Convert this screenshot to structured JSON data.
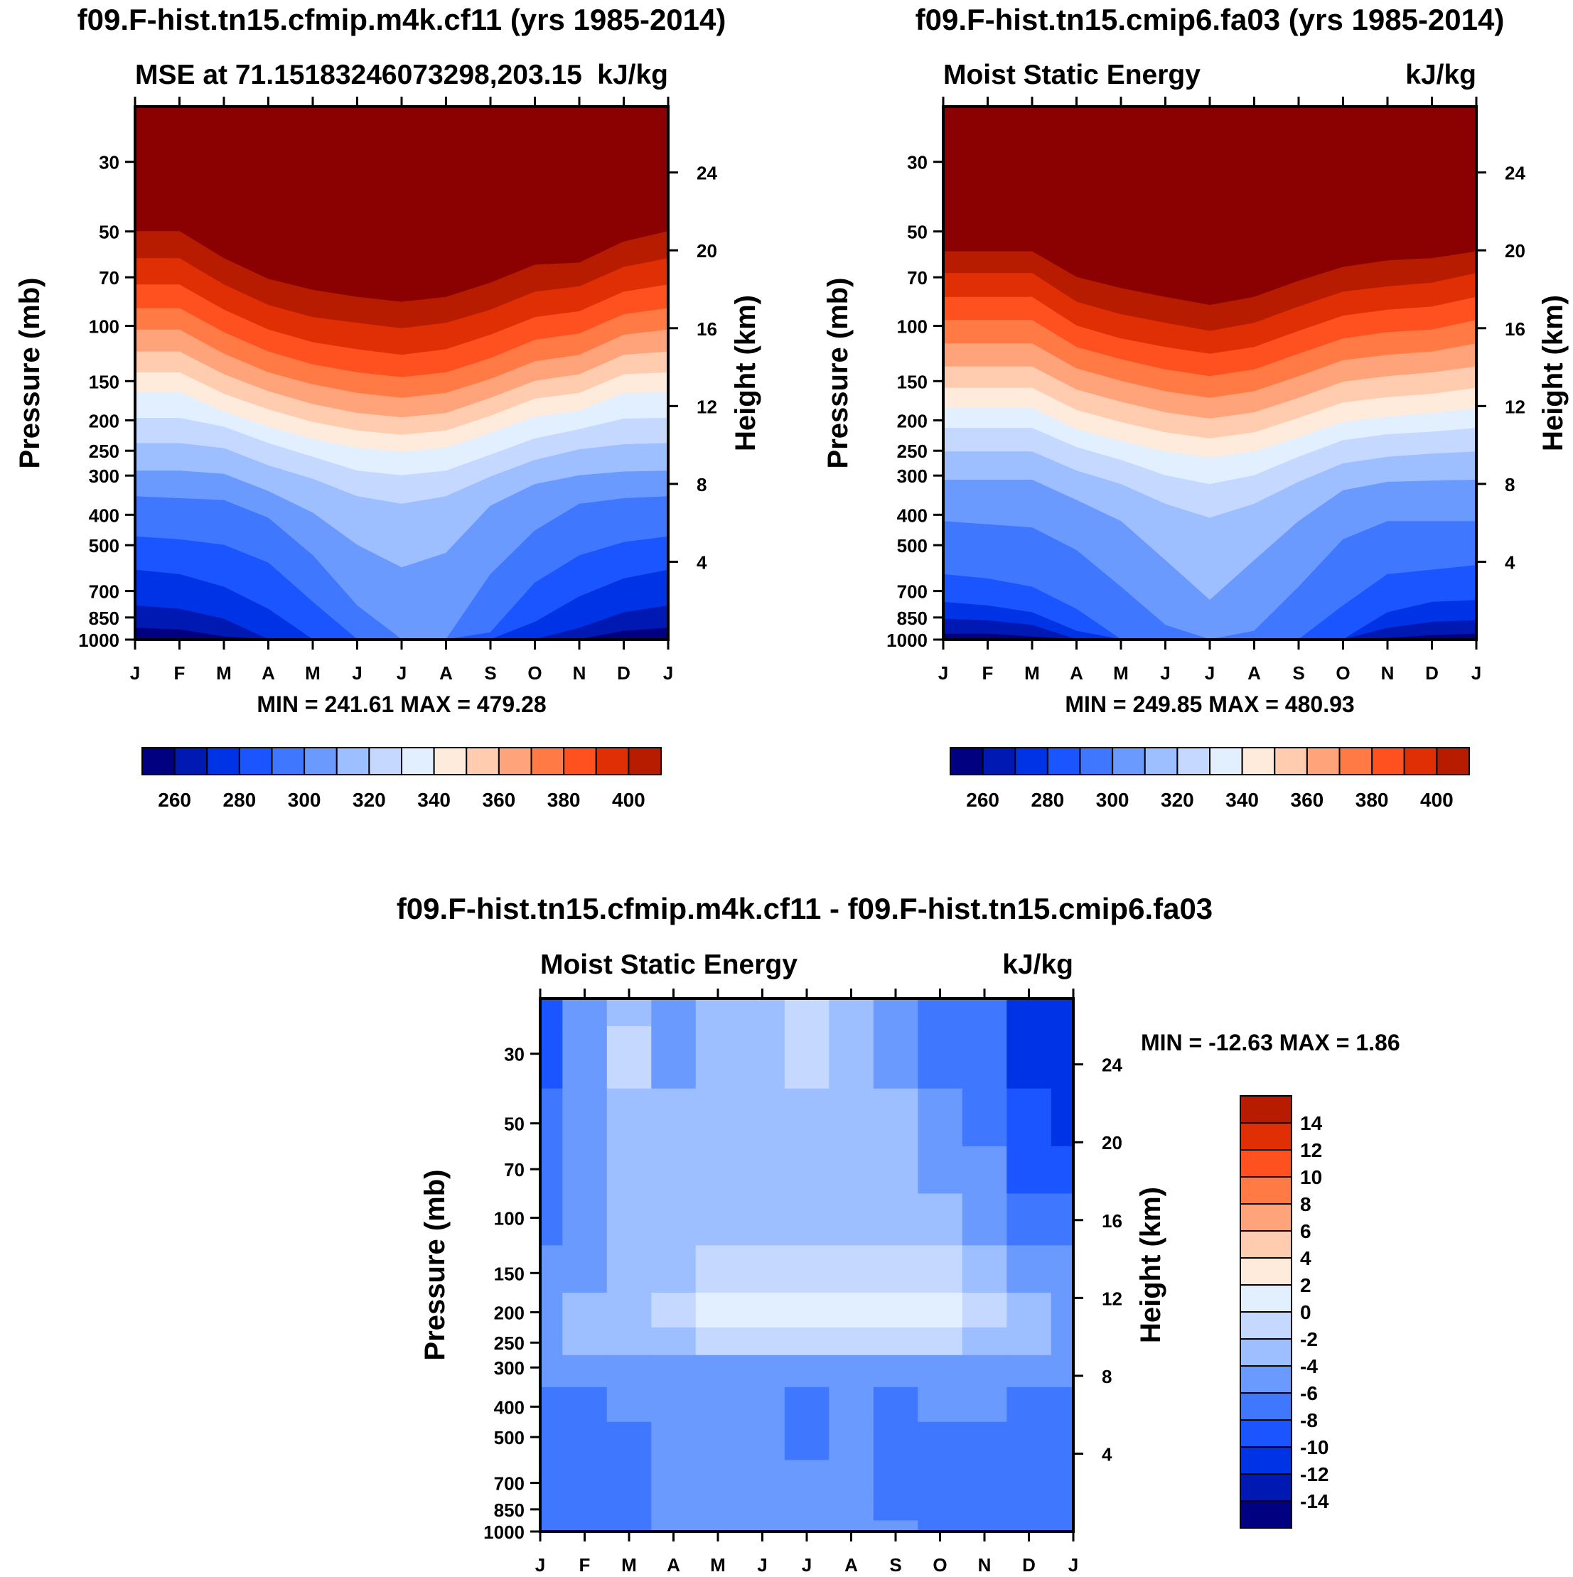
{
  "colors": {
    "mse_levels": [
      "#000080",
      "#0019B3",
      "#0033E6",
      "#1A55FF",
      "#3F77FF",
      "#6B9AFF",
      "#9DBEFF",
      "#C5D8FF",
      "#E2EFFF",
      "#FFEBDB",
      "#FFCCB0",
      "#FFA37A",
      "#FF7A45",
      "#FF5020",
      "#E02F05",
      "#B81C00",
      "#8B0000"
    ],
    "diff_levels": [
      "#000080",
      "#0019B3",
      "#0033E6",
      "#1A55FF",
      "#3F77FF",
      "#6B9AFF",
      "#9DBEFF",
      "#C5D8FF",
      "#E2EFFF",
      "#FFEBDB",
      "#FFCCB0",
      "#FFA37A",
      "#FF7A45",
      "#FF5020",
      "#E02F05",
      "#B81C00",
      "#8B0000"
    ]
  },
  "chart_data": [
    {
      "type": "heatmap",
      "title": "f09.F-hist.tn15.cfmip.m4k.cf11 (yrs 1985-2014)",
      "left_string": "MSE at 71.15183246073298,203.15",
      "right_string": "kJ/kg",
      "ylabel": "Pressure (mb)",
      "y2label": "Height (km)",
      "x_tick_labels": [
        "J",
        "F",
        "M",
        "A",
        "M",
        "J",
        "J",
        "A",
        "S",
        "O",
        "N",
        "D",
        "J"
      ],
      "y_ticks": [
        30,
        50,
        70,
        100,
        150,
        200,
        250,
        300,
        400,
        500,
        700,
        850,
        1000
      ],
      "y2_ticks": [
        24,
        20,
        16,
        12,
        8,
        4
      ],
      "ylim": [
        20,
        1000
      ],
      "min_max_text": "MIN = 241.61 MAX = 479.28",
      "colorbar": {
        "orientation": "horizontal",
        "labels": [
          "260",
          "280",
          "300",
          "320",
          "340",
          "360",
          "380",
          "400"
        ],
        "boundaries": [
          250,
          260,
          270,
          280,
          290,
          300,
          310,
          320,
          330,
          340,
          350,
          360,
          370,
          380,
          390,
          400
        ]
      },
      "boundaries_mb": {
        "400": [
          50,
          50,
          61,
          71,
          77,
          81,
          84,
          81,
          73,
          64,
          63,
          54,
          50
        ],
        "390": [
          61,
          61,
          74,
          86,
          94,
          98,
          102,
          98,
          89,
          78,
          75,
          65,
          61
        ],
        "380": [
          74,
          74,
          89,
          103,
          113,
          119,
          124,
          119,
          107,
          94,
          90,
          78,
          74
        ],
        "370": [
          88,
          88,
          105,
          121,
          133,
          141,
          146,
          141,
          127,
          111,
          106,
          92,
          88
        ],
        "360": [
          103,
          103,
          123,
          141,
          154,
          164,
          170,
          164,
          148,
          130,
          124,
          107,
          103
        ],
        "350": [
          121,
          121,
          143,
          162,
          178,
          190,
          196,
          190,
          170,
          150,
          143,
          124,
          121
        ],
        "340": [
          141,
          141,
          165,
          185,
          203,
          216,
          223,
          216,
          194,
          171,
          164,
          143,
          141
        ],
        "330": [
          163,
          163,
          188,
          210,
          230,
          245,
          252,
          245,
          220,
          195,
          187,
          164,
          163
        ],
        "320": [
          197,
          197,
          210,
          237,
          262,
          290,
          300,
          290,
          258,
          229,
          214,
          198,
          197
        ],
        "310": [
          237,
          237,
          246,
          279,
          308,
          350,
          370,
          350,
          303,
          268,
          248,
          239,
          237
        ],
        "300": [
          290,
          290,
          297,
          337,
          395,
          500,
          590,
          530,
          375,
          320,
          300,
          292,
          290
        ],
        "290": [
          350,
          355,
          360,
          410,
          540,
          780,
          1000,
          1000,
          620,
          450,
          370,
          355,
          350
        ],
        "280": [
          470,
          480,
          500,
          570,
          760,
          1000,
          1000,
          1000,
          950,
          660,
          540,
          490,
          470
        ],
        "270": [
          600,
          620,
          680,
          800,
          1000,
          1000,
          1000,
          1000,
          1000,
          880,
          730,
          640,
          600
        ],
        "260": [
          780,
          800,
          860,
          1000,
          1000,
          1000,
          1000,
          1000,
          1000,
          1000,
          920,
          820,
          780
        ],
        "250": [
          920,
          930,
          980,
          1000,
          1000,
          1000,
          1000,
          1000,
          1000,
          1000,
          1000,
          940,
          920
        ]
      }
    },
    {
      "type": "heatmap",
      "title": "f09.F-hist.tn15.cmip6.fa03 (yrs 1985-2014)",
      "left_string": "Moist Static Energy",
      "right_string": "kJ/kg",
      "ylabel": "Pressure (mb)",
      "y2label": "Height (km)",
      "x_tick_labels": [
        "J",
        "F",
        "M",
        "A",
        "M",
        "J",
        "J",
        "A",
        "S",
        "O",
        "N",
        "D",
        "J"
      ],
      "y_ticks": [
        30,
        50,
        70,
        100,
        150,
        200,
        250,
        300,
        400,
        500,
        700,
        850,
        1000
      ],
      "y2_ticks": [
        24,
        20,
        16,
        12,
        8,
        4
      ],
      "ylim": [
        20,
        1000
      ],
      "min_max_text": "MIN = 249.85 MAX = 480.93",
      "colorbar": {
        "orientation": "horizontal",
        "labels": [
          "260",
          "280",
          "300",
          "320",
          "340",
          "360",
          "380",
          "400"
        ],
        "boundaries": [
          250,
          260,
          270,
          280,
          290,
          300,
          310,
          320,
          330,
          340,
          350,
          360,
          370,
          380,
          390,
          400
        ]
      },
      "boundaries_mb": {
        "400": [
          58,
          58,
          58,
          70,
          76,
          81,
          86,
          81,
          72,
          65,
          62,
          61,
          58
        ],
        "390": [
          68,
          68,
          68,
          84,
          92,
          98,
          104,
          98,
          87,
          78,
          75,
          73,
          68
        ],
        "380": [
          81,
          81,
          81,
          100,
          110,
          117,
          123,
          117,
          104,
          93,
          89,
          87,
          81
        ],
        "370": [
          96,
          96,
          96,
          117,
          128,
          138,
          145,
          138,
          123,
          110,
          105,
          103,
          96
        ],
        "360": [
          114,
          114,
          114,
          137,
          150,
          162,
          170,
          162,
          145,
          129,
          124,
          121,
          114
        ],
        "350": [
          135,
          135,
          135,
          160,
          175,
          189,
          198,
          189,
          170,
          151,
          145,
          141,
          135
        ],
        "340": [
          158,
          158,
          158,
          186,
          203,
          219,
          229,
          219,
          197,
          176,
          169,
          165,
          158
        ],
        "330": [
          183,
          183,
          183,
          214,
          233,
          252,
          263,
          252,
          227,
          203,
          195,
          190,
          183
        ],
        "320": [
          212,
          212,
          212,
          244,
          268,
          300,
          320,
          300,
          262,
          232,
          222,
          218,
          212
        ],
        "310": [
          252,
          252,
          252,
          290,
          320,
          370,
          410,
          370,
          315,
          275,
          262,
          256,
          252
        ],
        "300": [
          310,
          310,
          310,
          360,
          420,
          560,
          750,
          560,
          420,
          335,
          315,
          312,
          310
        ],
        "290": [
          420,
          430,
          440,
          520,
          680,
          900,
          1000,
          940,
          680,
          480,
          420,
          420,
          420
        ],
        "280": [
          620,
          640,
          680,
          800,
          1000,
          1000,
          1000,
          1000,
          1000,
          780,
          620,
          600,
          580
        ],
        "270": [
          760,
          780,
          820,
          940,
          1000,
          1000,
          1000,
          1000,
          1000,
          1000,
          820,
          760,
          750
        ],
        "260": [
          860,
          870,
          900,
          1000,
          1000,
          1000,
          1000,
          1000,
          1000,
          1000,
          920,
          880,
          870
        ],
        "250": [
          960,
          960,
          980,
          1000,
          1000,
          1000,
          1000,
          1000,
          1000,
          1000,
          990,
          970,
          960
        ]
      }
    },
    {
      "type": "heatmap",
      "title": "f09.F-hist.tn15.cfmip.m4k.cf11 - f09.F-hist.tn15.cmip6.fa03",
      "left_string": "Moist Static Energy",
      "right_string": "kJ/kg",
      "ylabel": "Pressure (mb)",
      "y2label": "Height (km)",
      "x_tick_labels": [
        "J",
        "F",
        "M",
        "A",
        "M",
        "J",
        "J",
        "A",
        "S",
        "O",
        "N",
        "D",
        "J"
      ],
      "y_ticks": [
        30,
        50,
        70,
        100,
        150,
        200,
        250,
        300,
        400,
        500,
        700,
        850,
        1000
      ],
      "y2_ticks": [
        24,
        20,
        16,
        12,
        8,
        4
      ],
      "ylim": [
        20,
        1000
      ],
      "min_max_text": "MIN = -12.63 MAX =   1.86",
      "colorbar": {
        "orientation": "vertical",
        "labels": [
          "14",
          "12",
          "10",
          "8",
          "6",
          "4",
          "2",
          "0",
          "-2",
          "-4",
          "-6",
          "-8",
          "-10",
          "-12",
          "-14"
        ],
        "boundaries": [
          -15,
          -14,
          -12,
          -10,
          -8,
          -6,
          -4,
          -2,
          0,
          2,
          4,
          6,
          8,
          10,
          12,
          14,
          15
        ]
      },
      "matrix": {
        "months": [
          "J",
          "F",
          "M",
          "A",
          "M",
          "J",
          "J",
          "A",
          "S",
          "O",
          "N",
          "D",
          "J"
        ],
        "pressures_mb": [
          20,
          30,
          50,
          70,
          100,
          150,
          200,
          250,
          300,
          400,
          500,
          700,
          850,
          1000
        ],
        "values": [
          [
            -9,
            -6,
            -3,
            -5,
            -4,
            -3,
            -1.5,
            -3,
            -5,
            -7,
            -8,
            -11,
            -12
          ],
          [
            -9,
            -6,
            -2,
            -5,
            -4,
            -3,
            -1.5,
            -3,
            -5,
            -7,
            -8,
            -11,
            -12
          ],
          [
            -8,
            -5,
            -3,
            -4,
            -4,
            -3,
            -3,
            -3,
            -4,
            -6,
            -7,
            -10,
            -11
          ],
          [
            -8,
            -5,
            -3,
            -3,
            -3,
            -3,
            -3,
            -3,
            -4,
            -5,
            -6,
            -9,
            -9
          ],
          [
            -7,
            -5,
            -3,
            -3,
            -3,
            -3,
            -3,
            -3,
            -3,
            -4,
            -5,
            -7,
            -8
          ],
          [
            -6,
            -5,
            -4,
            -3,
            -2,
            -1.5,
            -1.5,
            -1.5,
            -1.5,
            -2,
            -3,
            -5,
            -6
          ],
          [
            -5,
            -4,
            -3,
            -1.5,
            0.5,
            0.8,
            0.8,
            1,
            1.5,
            1.2,
            -1.5,
            -4,
            -5
          ],
          [
            -5,
            -4,
            -3,
            -3,
            -2,
            -2,
            -2,
            -2,
            -2,
            -2,
            -3,
            -4,
            -5
          ],
          [
            -5,
            -5,
            -5,
            -5,
            -5,
            -5,
            -5,
            -5,
            -5,
            -5,
            -5,
            -5,
            -5
          ],
          [
            -7,
            -7,
            -6,
            -5,
            -5,
            -5,
            -7,
            -5,
            -7,
            -6,
            -6,
            -7,
            -7
          ],
          [
            -7,
            -7,
            -7,
            -5,
            -5,
            -5,
            -7,
            -5,
            -7,
            -7,
            -7,
            -7,
            -7
          ],
          [
            -7,
            -7,
            -7,
            -5,
            -5,
            -5,
            -5,
            -5,
            -7,
            -7,
            -7,
            -7,
            -8
          ],
          [
            -8,
            -7,
            -7,
            -5,
            -5,
            -5,
            -5,
            -5,
            -7,
            -7,
            -7,
            -8,
            -8
          ],
          [
            -8,
            -8,
            -7,
            -5,
            -5,
            -5,
            -5,
            -5,
            -5,
            -7,
            -8,
            -8,
            -8
          ]
        ]
      }
    }
  ]
}
